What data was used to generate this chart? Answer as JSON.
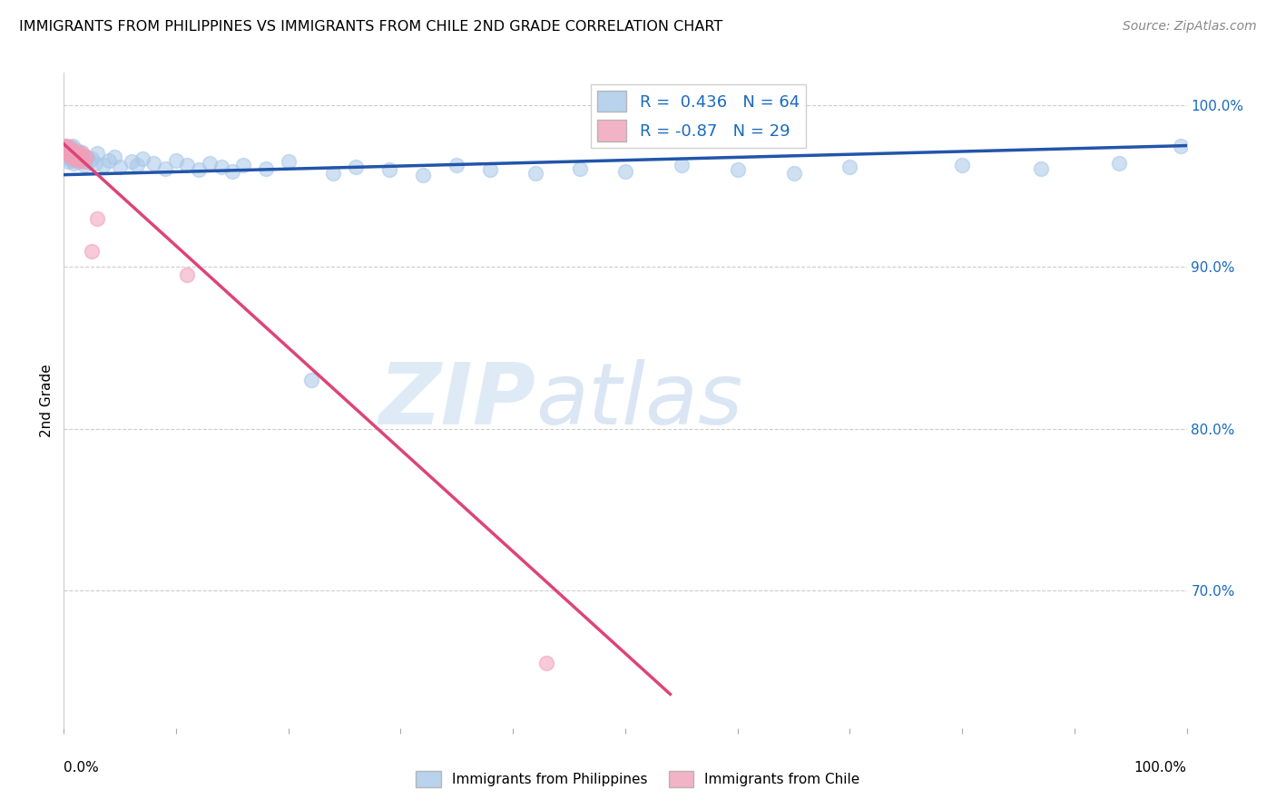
{
  "title": "IMMIGRANTS FROM PHILIPPINES VS IMMIGRANTS FROM CHILE 2ND GRADE CORRELATION CHART",
  "source": "Source: ZipAtlas.com",
  "ylabel": "2nd Grade",
  "ytick_labels": [
    "100.0%",
    "90.0%",
    "80.0%",
    "70.0%"
  ],
  "ytick_positions": [
    1.0,
    0.9,
    0.8,
    0.7
  ],
  "xlim": [
    0.0,
    1.0
  ],
  "ylim": [
    0.615,
    1.02
  ],
  "blue_R": 0.436,
  "blue_N": 64,
  "pink_R": -0.87,
  "pink_N": 29,
  "blue_color": "#a8c8e8",
  "pink_color": "#f0a0b8",
  "blue_line_color": "#2255aa",
  "pink_line_color": "#dd4477",
  "scatter_alpha": 0.55,
  "scatter_size": 130,
  "watermark_zip": "ZIP",
  "watermark_atlas": "atlas",
  "blue_points_x": [
    0.001,
    0.002,
    0.003,
    0.003,
    0.004,
    0.004,
    0.005,
    0.005,
    0.006,
    0.006,
    0.007,
    0.007,
    0.008,
    0.008,
    0.009,
    0.01,
    0.011,
    0.012,
    0.013,
    0.014,
    0.015,
    0.016,
    0.018,
    0.02,
    0.022,
    0.025,
    0.028,
    0.03,
    0.035,
    0.04,
    0.045,
    0.05,
    0.06,
    0.065,
    0.07,
    0.08,
    0.09,
    0.1,
    0.11,
    0.12,
    0.13,
    0.14,
    0.15,
    0.16,
    0.18,
    0.2,
    0.22,
    0.24,
    0.26,
    0.29,
    0.32,
    0.35,
    0.38,
    0.42,
    0.46,
    0.5,
    0.55,
    0.6,
    0.65,
    0.7,
    0.8,
    0.87,
    0.94,
    0.995
  ],
  "blue_points_y": [
    0.975,
    0.97,
    0.968,
    0.972,
    0.965,
    0.971,
    0.967,
    0.973,
    0.969,
    0.974,
    0.966,
    0.971,
    0.968,
    0.975,
    0.964,
    0.97,
    0.967,
    0.972,
    0.965,
    0.969,
    0.966,
    0.971,
    0.963,
    0.968,
    0.965,
    0.967,
    0.964,
    0.97,
    0.963,
    0.966,
    0.968,
    0.962,
    0.965,
    0.963,
    0.967,
    0.964,
    0.961,
    0.966,
    0.963,
    0.96,
    0.964,
    0.962,
    0.959,
    0.963,
    0.961,
    0.965,
    0.83,
    0.958,
    0.962,
    0.96,
    0.957,
    0.963,
    0.96,
    0.958,
    0.961,
    0.959,
    0.963,
    0.96,
    0.958,
    0.962,
    0.963,
    0.961,
    0.964,
    0.975
  ],
  "pink_points_x": [
    0.001,
    0.002,
    0.002,
    0.003,
    0.003,
    0.004,
    0.004,
    0.005,
    0.005,
    0.006,
    0.006,
    0.007,
    0.007,
    0.008,
    0.008,
    0.009,
    0.01,
    0.011,
    0.012,
    0.013,
    0.014,
    0.015,
    0.016,
    0.018,
    0.02,
    0.025,
    0.03,
    0.11,
    0.43
  ],
  "pink_points_y": [
    0.974,
    0.972,
    0.975,
    0.97,
    0.973,
    0.971,
    0.974,
    0.969,
    0.972,
    0.97,
    0.973,
    0.968,
    0.971,
    0.969,
    0.972,
    0.967,
    0.97,
    0.968,
    0.971,
    0.966,
    0.969,
    0.967,
    0.97,
    0.965,
    0.968,
    0.91,
    0.93,
    0.895,
    0.655
  ],
  "blue_line_x0": 0.0,
  "blue_line_x1": 1.0,
  "blue_line_y0": 0.957,
  "blue_line_y1": 0.975,
  "pink_line_x0": 0.0,
  "pink_line_x1": 0.54,
  "pink_line_y0": 0.976,
  "pink_line_y1": 0.636
}
